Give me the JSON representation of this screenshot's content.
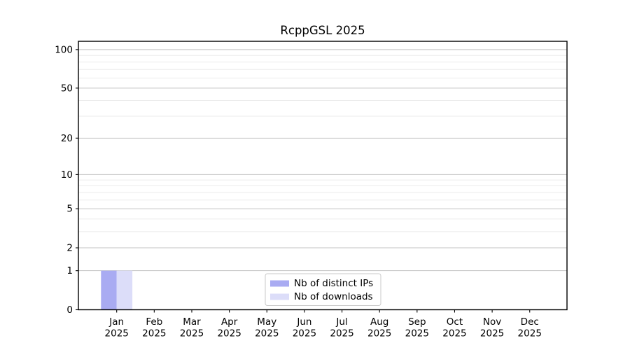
{
  "page": {
    "background": "#ffffff"
  },
  "chart_data": {
    "type": "bar",
    "title": "RcppGSL 2025",
    "categories": [
      "Jan\n2025",
      "Feb\n2025",
      "Mar\n2025",
      "Apr\n2025",
      "May\n2025",
      "Jun\n2025",
      "Jul\n2025",
      "Aug\n2025",
      "Sep\n2025",
      "Oct\n2025",
      "Nov\n2025",
      "Dec\n2025"
    ],
    "series": [
      {
        "id": "distinct-ips",
        "name": "Nb of distinct IPs",
        "color": "#a9abf2",
        "values": [
          1,
          0,
          0,
          0,
          0,
          0,
          0,
          0,
          0,
          0,
          0,
          0
        ]
      },
      {
        "id": "downloads",
        "name": "Nb of downloads",
        "color": "#dcddf9",
        "values": [
          1,
          0,
          0,
          0,
          0,
          0,
          0,
          0,
          0,
          0,
          0,
          0
        ]
      }
    ],
    "xlabel": "",
    "ylabel": "",
    "y_scale": "log1p",
    "ylim": [
      0,
      116
    ],
    "y_major_ticks": [
      0,
      1,
      2,
      5,
      10,
      20,
      50,
      100
    ],
    "y_minor_gridlines": [
      3,
      4,
      6,
      7,
      8,
      9,
      30,
      40,
      60,
      70,
      80,
      90
    ],
    "grid": "horizontal",
    "legend_position": "lower center",
    "colors": {
      "grid_major": "#c3c3c3",
      "grid_minor": "#ebebeb",
      "axis": "#000000",
      "legend_border": "#c9c9c9",
      "legend_background": "#ffffff",
      "plot_background": "#ffffff"
    }
  }
}
